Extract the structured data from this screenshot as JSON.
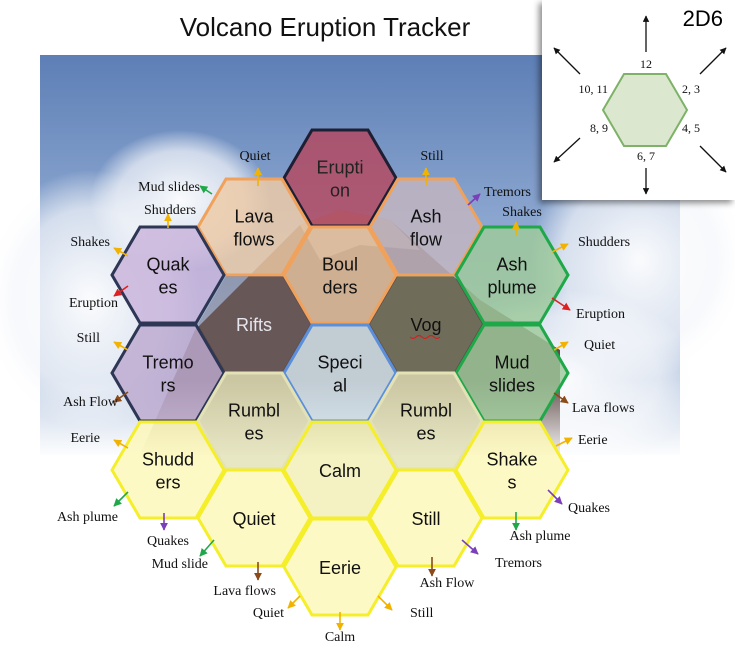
{
  "title": "Volcano Eruption Tracker",
  "legend": {
    "title": "2D6",
    "labels": {
      "top": "12",
      "upper_right": "2, 3",
      "lower_right": "4, 5",
      "bottom": "6, 7",
      "lower_left": "8, 9",
      "upper_left": "10, 11"
    }
  },
  "colors": {
    "eruption": "#b5485f",
    "tan": "#eecaa6",
    "grey": "#c2b4bf",
    "purple": "#c9b3db",
    "green": "#9ec99a",
    "special": "#d7e8f1",
    "yellow": "#fcf8b8",
    "olive": "#e3e2b7",
    "legend_fill": "#dbe8cf",
    "legend_stroke": "#7db268"
  },
  "hexes": [
    {
      "id": "eruption",
      "lines": [
        "Erupti",
        "on"
      ],
      "fill": "#b5485f",
      "stroke": "#1f1f33",
      "text_color": "#222"
    },
    {
      "id": "lava-flows",
      "lines": [
        "Lava",
        "flows"
      ],
      "fill": "#eecaa6",
      "stroke": "#f0a25c",
      "text_color": "#111"
    },
    {
      "id": "ash-flow",
      "lines": [
        "Ash",
        "flow"
      ],
      "fill": "#c2b4bf",
      "stroke": "#f0a25c",
      "text_color": "#111"
    },
    {
      "id": "quakes",
      "lines": [
        "Quak",
        "es"
      ],
      "fill": "#c9b3db",
      "stroke": "#2d3655",
      "text_color": "#111"
    },
    {
      "id": "boulders",
      "lines": [
        "Boul",
        "ders"
      ],
      "fill": "#e6c4a2",
      "stroke": "#f0a25c",
      "text_color": "#111"
    },
    {
      "id": "ash-plume",
      "lines": [
        "Ash",
        "plume"
      ],
      "fill": "#9ec99a",
      "stroke": "#1fa84a",
      "text_color": "#111"
    },
    {
      "id": "rifts",
      "lines": [
        "Rifts"
      ],
      "fill": "#7a6a70",
      "stroke": "#7a6a70",
      "text_color": "#e6e6ee"
    },
    {
      "id": "vog",
      "lines": [
        "Vog"
      ],
      "fill": "#8ea878",
      "stroke": "#8ea878",
      "text_color": "#111"
    },
    {
      "id": "tremors",
      "lines": [
        "Tremo",
        "rs"
      ],
      "fill": "#bda9cf",
      "stroke": "#2d3655",
      "text_color": "#111"
    },
    {
      "id": "special",
      "lines": [
        "Speci",
        "al"
      ],
      "fill": "#d7e8f1",
      "stroke": "#5b8fd9",
      "text_color": "#111"
    },
    {
      "id": "mud-slides",
      "lines": [
        "Mud",
        "slides"
      ],
      "fill": "#9ec99a",
      "stroke": "#1fa84a",
      "text_color": "#111"
    },
    {
      "id": "rumbles-left",
      "lines": [
        "Rumbl",
        "es"
      ],
      "fill": "#e3e2b7",
      "stroke": "#e3e2b7",
      "text_color": "#111"
    },
    {
      "id": "rumbles-right",
      "lines": [
        "Rumbl",
        "es"
      ],
      "fill": "#e3e2b7",
      "stroke": "#e3e2b7",
      "text_color": "#111"
    },
    {
      "id": "shudders",
      "lines": [
        "Shudd",
        "ers"
      ],
      "fill": "#fcf8b8",
      "stroke": "#f5ee2a",
      "text_color": "#111"
    },
    {
      "id": "calm",
      "lines": [
        "Calm"
      ],
      "fill": "#f2efb4",
      "stroke": "#f5ee2a",
      "text_color": "#111"
    },
    {
      "id": "shakes",
      "lines": [
        "Shake",
        "s"
      ],
      "fill": "#fcf8b8",
      "stroke": "#f5ee2a",
      "text_color": "#111"
    },
    {
      "id": "quiet",
      "lines": [
        "Quiet"
      ],
      "fill": "#fcf8b8",
      "stroke": "#f5ee2a",
      "text_color": "#111"
    },
    {
      "id": "still",
      "lines": [
        "Still"
      ],
      "fill": "#fcf8b8",
      "stroke": "#f5ee2a",
      "text_color": "#111"
    },
    {
      "id": "eerie",
      "lines": [
        "Eerie"
      ],
      "fill": "#fcf8b8",
      "stroke": "#f5ee2a",
      "text_color": "#111"
    }
  ],
  "edge_labels": [
    {
      "id": "eruption-to-quiet",
      "text": "Quiet",
      "color": "#f2b300"
    },
    {
      "id": "eruption-to-still",
      "text": "Still",
      "color": "#f2b300"
    },
    {
      "id": "lava-to-mud-slides",
      "text": "Mud slides",
      "color": "#1fa84a"
    },
    {
      "id": "lava-to-shudders",
      "text": "Shudders",
      "color": "#f2b300"
    },
    {
      "id": "ashflow-to-tremors",
      "text": "Tremors",
      "color": "#7b3fb8"
    },
    {
      "id": "ashflow-to-shakes",
      "text": "Shakes",
      "color": "#f2b300"
    },
    {
      "id": "quakes-to-shakes",
      "text": "Shakes",
      "color": "#f2b300"
    },
    {
      "id": "quakes-to-eruption",
      "text": "Eruption",
      "color": "#e02020"
    },
    {
      "id": "ashplume-to-shudders",
      "text": "Shudders",
      "color": "#f2b300"
    },
    {
      "id": "ashplume-to-eruption",
      "text": "Eruption",
      "color": "#e02020"
    },
    {
      "id": "tremors-to-still",
      "text": "Still",
      "color": "#f2b300"
    },
    {
      "id": "tremors-to-ash-flow",
      "text": "Ash Flow",
      "color": "#8b4a1a"
    },
    {
      "id": "mudslides-to-quiet",
      "text": "Quiet",
      "color": "#f2b300"
    },
    {
      "id": "mudslides-to-lava-flows",
      "text": "Lava flows",
      "color": "#8b4a1a"
    },
    {
      "id": "shudders-to-eerie",
      "text": "Eerie",
      "color": "#f2b300"
    },
    {
      "id": "shudders-to-ash-plume",
      "text": "Ash plume",
      "color": "#1fa84a"
    },
    {
      "id": "shudders-to-quakes",
      "text": "Quakes",
      "color": "#7b3fb8"
    },
    {
      "id": "shakes-to-eerie",
      "text": "Eerie",
      "color": "#f2b300"
    },
    {
      "id": "shakes-to-quakes",
      "text": "Quakes",
      "color": "#7b3fb8"
    },
    {
      "id": "shakes-to-ash-plume",
      "text": "Ash plume",
      "color": "#1fa84a"
    },
    {
      "id": "quiet-to-mud-slide",
      "text": "Mud slide",
      "color": "#1fa84a"
    },
    {
      "id": "quiet-to-lava-flows",
      "text": "Lava flows",
      "color": "#8b4a1a"
    },
    {
      "id": "still-to-ash-flow",
      "text": "Ash Flow",
      "color": "#8b4a1a"
    },
    {
      "id": "still-to-tremors",
      "text": "Tremors",
      "color": "#7b3fb8"
    },
    {
      "id": "eerie-to-quiet",
      "text": "Quiet",
      "color": "#f2b300"
    },
    {
      "id": "eerie-to-still",
      "text": "Still",
      "color": "#f2b300"
    },
    {
      "id": "eerie-to-calm",
      "text": "Calm",
      "color": "#f2b300"
    }
  ]
}
